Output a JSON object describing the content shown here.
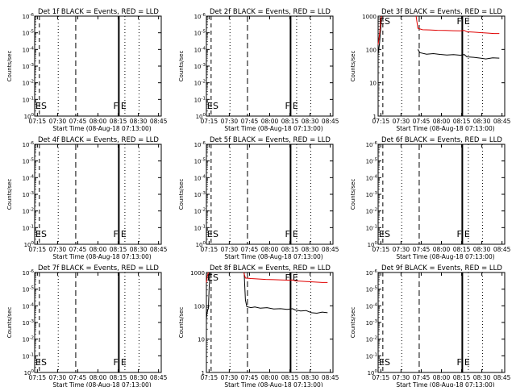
{
  "chart_data": [
    {
      "type": "line",
      "title": "Det 1f BLACK = Events, RED = LLD",
      "ylabel": "Counts/sec",
      "xlabel": "Start Time (08-Aug-18 07:13:00)",
      "y_scale": "log",
      "y_ticks": [
        "10^-6",
        "10^-5",
        "10^-4",
        "10^-3",
        "10^-2",
        "10^-1",
        "10^0"
      ],
      "x_ticks": [
        "07:15",
        "07:30",
        "07:45",
        "08:00",
        "08:15",
        "08:30",
        "08:45"
      ],
      "markers": [
        "ES",
        "F",
        "E"
      ],
      "series": []
    },
    {
      "type": "line",
      "title": "Det 2f BLACK = Events, RED = LLD",
      "ylabel": "Counts/sec",
      "xlabel": "Start Time (08-Aug-18 07:13:00)",
      "y_scale": "log",
      "y_ticks": [
        "10^-6",
        "10^-5",
        "10^-4",
        "10^-3",
        "10^-2",
        "10^-1",
        "10^0"
      ],
      "x_ticks": [
        "07:15",
        "07:30",
        "07:45",
        "08:00",
        "08:15",
        "08:30",
        "08:45"
      ],
      "markers": [
        "ES",
        "F",
        "E"
      ],
      "series": []
    },
    {
      "type": "line",
      "title": "Det 3f BLACK = Events, RED = LLD",
      "ylabel": "Counts/sec",
      "xlabel": "Start Time (08-Aug-18 07:13:00)",
      "y_scale": "log",
      "y_ticks": [
        "1000",
        "100",
        "10",
        "1"
      ],
      "x_ticks": [
        "07:15",
        "07:30",
        "07:45",
        "08:00",
        "08:15",
        "08:30",
        "08:45"
      ],
      "markers": [
        "ES",
        "F",
        "E"
      ],
      "series": [
        {
          "color": "#000000",
          "segments": [
            [
              [
                0.0,
                70
              ],
              [
                1.0,
                150
              ],
              [
                2.0,
                450
              ],
              [
                2.6,
                900
              ]
            ],
            [
              [
                29.5,
                100
              ],
              [
                31,
                80
              ],
              [
                36,
                72
              ],
              [
                41,
                75
              ],
              [
                46,
                71
              ],
              [
                51,
                68
              ],
              [
                56,
                70
              ],
              [
                61,
                67
              ],
              [
                64,
                70
              ],
              [
                66,
                60
              ],
              [
                71,
                58
              ],
              [
                76,
                55
              ],
              [
                80,
                52
              ],
              [
                85,
                56
              ],
              [
                90,
                55
              ]
            ]
          ]
        },
        {
          "color": "#e00000",
          "segments": [
            [
              [
                0.0,
                140
              ],
              [
                1.0,
                280
              ],
              [
                2.0,
                800
              ],
              [
                2.6,
                1000
              ]
            ],
            [
              [
                28.2,
                1000
              ],
              [
                29.5,
                430
              ],
              [
                33,
                390
              ],
              [
                38,
                385
              ],
              [
                44,
                375
              ],
              [
                50,
                370
              ],
              [
                56,
                365
              ],
              [
                61,
                360
              ],
              [
                64,
                370
              ],
              [
                66,
                340
              ],
              [
                71,
                330
              ],
              [
                76,
                320
              ],
              [
                81,
                310
              ],
              [
                86,
                300
              ],
              [
                90,
                300
              ]
            ]
          ]
        }
      ]
    },
    {
      "type": "line",
      "title": "Det 4f BLACK = Events, RED = LLD",
      "ylabel": "Counts/sec",
      "xlabel": "Start Time (08-Aug-18 07:13:00)",
      "y_scale": "log",
      "y_ticks": [
        "10^-6",
        "10^-5",
        "10^-4",
        "10^-3",
        "10^-2",
        "10^-1",
        "10^0"
      ],
      "x_ticks": [
        "07:15",
        "07:30",
        "07:45",
        "08:00",
        "08:15",
        "08:30",
        "08:45"
      ],
      "markers": [
        "ES",
        "F",
        "E"
      ],
      "series": []
    },
    {
      "type": "line",
      "title": "Det 5f BLACK = Events, RED = LLD",
      "ylabel": "Counts/sec",
      "xlabel": "Start Time (08-Aug-18 07:13:00)",
      "y_scale": "log",
      "y_ticks": [
        "10^-6",
        "10^-5",
        "10^-4",
        "10^-3",
        "10^-2",
        "10^-1",
        "10^0"
      ],
      "x_ticks": [
        "07:15",
        "07:30",
        "07:45",
        "08:00",
        "08:15",
        "08:30",
        "08:45"
      ],
      "markers": [
        "ES",
        "F",
        "E"
      ],
      "series": []
    },
    {
      "type": "line",
      "title": "Det 6f BLACK = Events, RED = LLD",
      "ylabel": "Counts/sec",
      "xlabel": "Start Time (08-Aug-18 07:13:00)",
      "y_scale": "log",
      "y_ticks": [
        "10^-6",
        "10^-5",
        "10^-4",
        "10^-3",
        "10^-2",
        "10^-1",
        "10^0"
      ],
      "x_ticks": [
        "07:15",
        "07:30",
        "07:45",
        "08:00",
        "08:15",
        "08:30",
        "08:45"
      ],
      "markers": [
        "ES",
        "F",
        "E"
      ],
      "series": []
    },
    {
      "type": "line",
      "title": "Det 7f BLACK = Events, RED = LLD",
      "ylabel": "Counts/sec",
      "xlabel": "Start Time (08-Aug-18 07:13:00)",
      "y_scale": "log",
      "y_ticks": [
        "10^-6",
        "10^-5",
        "10^-4",
        "10^-3",
        "10^-2",
        "10^-1",
        "10^0"
      ],
      "x_ticks": [
        "07:15",
        "07:30",
        "07:45",
        "08:00",
        "08:15",
        "08:30",
        "08:45"
      ],
      "markers": [
        "ES",
        "F",
        "E"
      ],
      "series": []
    },
    {
      "type": "line",
      "title": "Det 8f BLACK = Events, RED = LLD",
      "ylabel": "Counts/sec",
      "xlabel": "Start Time (08-Aug-18 07:13:00)",
      "y_scale": "log",
      "y_ticks": [
        "1000",
        "100",
        "10",
        "1"
      ],
      "x_ticks": [
        "07:15",
        "07:30",
        "07:45",
        "08:00",
        "08:15",
        "08:30",
        "08:45"
      ],
      "markers": [
        "ES",
        "F",
        "E"
      ],
      "series": [
        {
          "color": "#000000",
          "segments": [
            [
              [
                0.0,
                40
              ],
              [
                0.5,
                60
              ],
              [
                1.0,
                75
              ],
              [
                1.5,
                85
              ],
              [
                2.0,
                300
              ],
              [
                2.6,
                1000
              ]
            ],
            [
              [
                28.0,
                1000
              ],
              [
                29.0,
                150
              ],
              [
                30,
                95
              ],
              [
                33,
                88
              ],
              [
                36,
                92
              ],
              [
                40,
                85
              ],
              [
                45,
                88
              ],
              [
                50,
                80
              ],
              [
                55,
                82
              ],
              [
                60,
                78
              ],
              [
                64,
                82
              ],
              [
                66,
                75
              ],
              [
                70,
                70
              ],
              [
                74,
                72
              ],
              [
                78,
                62
              ],
              [
                82,
                60
              ],
              [
                86,
                65
              ],
              [
                90,
                62
              ]
            ]
          ]
        },
        {
          "color": "#e00000",
          "segments": [
            [
              [
                0.0,
                500
              ],
              [
                0.8,
                800
              ],
              [
                1.5,
                1000
              ]
            ],
            [
              [
                27.8,
                1000
              ],
              [
                29.0,
                680
              ],
              [
                33,
                660
              ],
              [
                38,
                640
              ],
              [
                44,
                620
              ],
              [
                50,
                610
              ],
              [
                56,
                600
              ],
              [
                61,
                590
              ],
              [
                64,
                595
              ],
              [
                66,
                560
              ],
              [
                71,
                545
              ],
              [
                76,
                530
              ],
              [
                81,
                515
              ],
              [
                86,
                500
              ],
              [
                90,
                500
              ]
            ]
          ]
        }
      ]
    },
    {
      "type": "line",
      "title": "Det 9f BLACK = Events, RED = LLD",
      "ylabel": "Counts/sec",
      "xlabel": "Start Time (08-Aug-18 07:13:00)",
      "y_scale": "log",
      "y_ticks": [
        "10^-6",
        "10^-5",
        "10^-4",
        "10^-3",
        "10^-2",
        "10^-1",
        "10^0"
      ],
      "x_ticks": [
        "07:15",
        "07:30",
        "07:45",
        "08:00",
        "08:15",
        "08:30",
        "08:45"
      ],
      "markers": [
        "ES",
        "F",
        "E"
      ],
      "series": []
    }
  ]
}
